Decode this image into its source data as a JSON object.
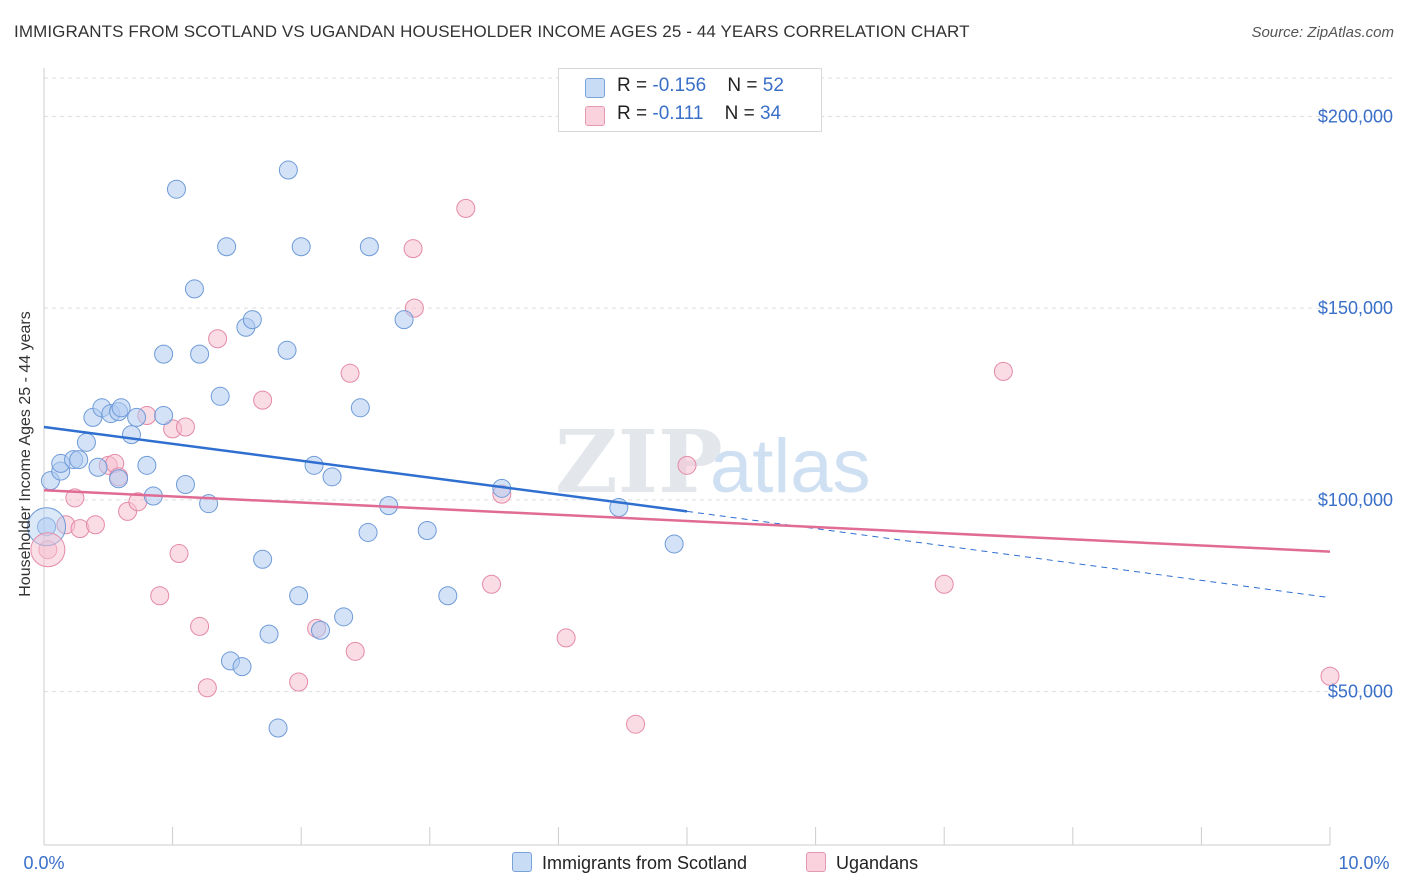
{
  "title": "IMMIGRANTS FROM SCOTLAND VS UGANDAN HOUSEHOLDER INCOME AGES 25 - 44 YEARS CORRELATION CHART",
  "source": "Source: ZipAtlas.com",
  "watermark": {
    "zip": "ZIP",
    "atlas": "atlas"
  },
  "legend": {
    "series1": {
      "r_label": "R = ",
      "r_value": "-0.156",
      "n_label": "N = ",
      "n_value": "52"
    },
    "series2": {
      "r_label": "R = ",
      "r_value": " -0.111",
      "n_label": "N = ",
      "n_value": "34"
    }
  },
  "chart_data": {
    "type": "scatter",
    "title": "IMMIGRANTS FROM SCOTLAND VS UGANDAN HOUSEHOLDER INCOME AGES 25 - 44 YEARS CORRELATION CHART",
    "xlabel": "",
    "ylabel": "Householder Income Ages 25 - 44 years",
    "xlim": [
      0,
      10
    ],
    "ylim": [
      10000,
      210000
    ],
    "x_tick_labels": [
      "0.0%",
      "10.0%"
    ],
    "y_ticks": [
      50000,
      100000,
      150000,
      200000
    ],
    "y_tick_labels": [
      "$50,000",
      "$100,000",
      "$150,000",
      "$200,000"
    ],
    "grid": true,
    "legend_position": "top-center",
    "colors": {
      "scotland_fill": "#aecbf0",
      "scotland_stroke": "#6f9bd8",
      "scotland_line": "#2f6fd0",
      "ugandan_fill": "#f6bfd0",
      "ugandan_stroke": "#e48aa8",
      "ugandan_line": "#e06b94",
      "axis_label_color": "#3a6fc8"
    },
    "series": [
      {
        "name": "Immigrants from Scotland",
        "trend": {
          "x": [
            0,
            5.0
          ],
          "y": [
            119000,
            97000
          ],
          "dash_to": [
            10,
            74500
          ]
        },
        "points": [
          [
            0.02,
            93000
          ],
          [
            0.05,
            105000
          ],
          [
            0.13,
            107500
          ],
          [
            0.13,
            109500
          ],
          [
            0.23,
            110500
          ],
          [
            0.27,
            110500
          ],
          [
            0.33,
            115000
          ],
          [
            0.38,
            121500
          ],
          [
            0.42,
            108500
          ],
          [
            0.45,
            124000
          ],
          [
            0.52,
            122500
          ],
          [
            0.58,
            123000
          ],
          [
            0.6,
            124000
          ],
          [
            0.58,
            105500
          ],
          [
            0.68,
            117000
          ],
          [
            0.72,
            121500
          ],
          [
            0.8,
            109000
          ],
          [
            0.85,
            101000
          ],
          [
            0.93,
            122000
          ],
          [
            0.93,
            138000
          ],
          [
            1.03,
            181000
          ],
          [
            1.1,
            104000
          ],
          [
            1.17,
            155000
          ],
          [
            1.21,
            138000
          ],
          [
            1.28,
            99000
          ],
          [
            1.37,
            127000
          ],
          [
            1.42,
            166000
          ],
          [
            1.45,
            58000
          ],
          [
            1.54,
            56500
          ],
          [
            1.57,
            145000
          ],
          [
            1.62,
            147000
          ],
          [
            1.7,
            84500
          ],
          [
            1.75,
            65000
          ],
          [
            1.82,
            40500
          ],
          [
            1.89,
            139000
          ],
          [
            1.9,
            186000
          ],
          [
            1.98,
            75000
          ],
          [
            2.0,
            166000
          ],
          [
            2.1,
            109000
          ],
          [
            2.15,
            66000
          ],
          [
            2.24,
            106000
          ],
          [
            2.33,
            69500
          ],
          [
            2.46,
            124000
          ],
          [
            2.52,
            91500
          ],
          [
            2.53,
            166000
          ],
          [
            2.68,
            98500
          ],
          [
            2.8,
            147000
          ],
          [
            2.98,
            92000
          ],
          [
            3.14,
            75000
          ],
          [
            3.56,
            103000
          ],
          [
            4.47,
            98000
          ],
          [
            4.9,
            88500
          ]
        ]
      },
      {
        "name": "Ugandans",
        "trend": {
          "x": [
            0,
            10
          ],
          "y": [
            102500,
            86500
          ]
        },
        "points": [
          [
            0.03,
            87000
          ],
          [
            0.17,
            93500
          ],
          [
            0.24,
            100500
          ],
          [
            0.28,
            92500
          ],
          [
            0.4,
            93500
          ],
          [
            0.5,
            109000
          ],
          [
            0.55,
            109500
          ],
          [
            0.58,
            106000
          ],
          [
            0.65,
            97000
          ],
          [
            0.73,
            99500
          ],
          [
            0.8,
            122000
          ],
          [
            0.9,
            75000
          ],
          [
            1.0,
            118500
          ],
          [
            1.05,
            86000
          ],
          [
            1.1,
            119000
          ],
          [
            1.21,
            67000
          ],
          [
            1.27,
            51000
          ],
          [
            1.35,
            142000
          ],
          [
            1.7,
            126000
          ],
          [
            1.98,
            52500
          ],
          [
            2.12,
            66500
          ],
          [
            2.38,
            133000
          ],
          [
            2.42,
            60500
          ],
          [
            2.87,
            165500
          ],
          [
            2.88,
            150000
          ],
          [
            3.28,
            176000
          ],
          [
            3.48,
            78000
          ],
          [
            3.56,
            101500
          ],
          [
            4.06,
            64000
          ],
          [
            4.6,
            41500
          ],
          [
            5.0,
            109000
          ],
          [
            7.0,
            78000
          ],
          [
            7.46,
            133500
          ],
          [
            10.0,
            54000
          ]
        ]
      }
    ]
  },
  "bottom_legend": {
    "series1": "Immigrants from Scotland",
    "series2": "Ugandans"
  }
}
